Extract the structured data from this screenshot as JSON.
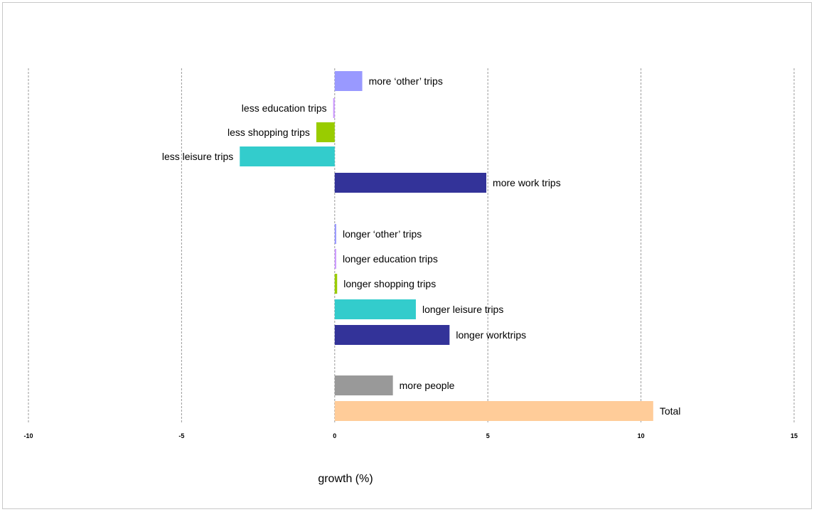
{
  "chart_data": {
    "type": "bar",
    "orientation": "horizontal",
    "title": "",
    "xlabel": "growth (%)",
    "ylabel": "",
    "xlim": [
      -10,
      15
    ],
    "xticks": [
      -10,
      -5,
      0,
      5,
      10,
      15
    ],
    "tick_labels": [
      "-10",
      "-5",
      "0",
      "5",
      "10",
      "15"
    ],
    "grid": "vertical dashed",
    "bars": [
      {
        "label": "more ‘other’ trips",
        "value": 0.9,
        "color": "#9999ff"
      },
      {
        "label": "less education trips",
        "value": -0.05,
        "color": "#cc99ff"
      },
      {
        "label": "less shopping trips",
        "value": -0.6,
        "color": "#99cc00"
      },
      {
        "label": "less leisure  trips",
        "value": -3.1,
        "color": "#33cccc"
      },
      {
        "label": "more work trips",
        "value": 4.95,
        "color": "#333399"
      },
      {
        "label": "longer ‘other’ trips",
        "value": 0.05,
        "color": "#9999ff"
      },
      {
        "label": "longer education trips",
        "value": 0.05,
        "color": "#cc99ff"
      },
      {
        "label": "longer shopping trips",
        "value": 0.08,
        "color": "#99cc00"
      },
      {
        "label": "longer leisure trips",
        "value": 2.65,
        "color": "#33cccc"
      },
      {
        "label": "longer worktrips",
        "value": 3.75,
        "color": "#333399"
      },
      {
        "label": "more people",
        "value": 1.9,
        "color": "#999999"
      },
      {
        "label": "Total",
        "value": 10.4,
        "color": "#ffcc99"
      }
    ]
  }
}
